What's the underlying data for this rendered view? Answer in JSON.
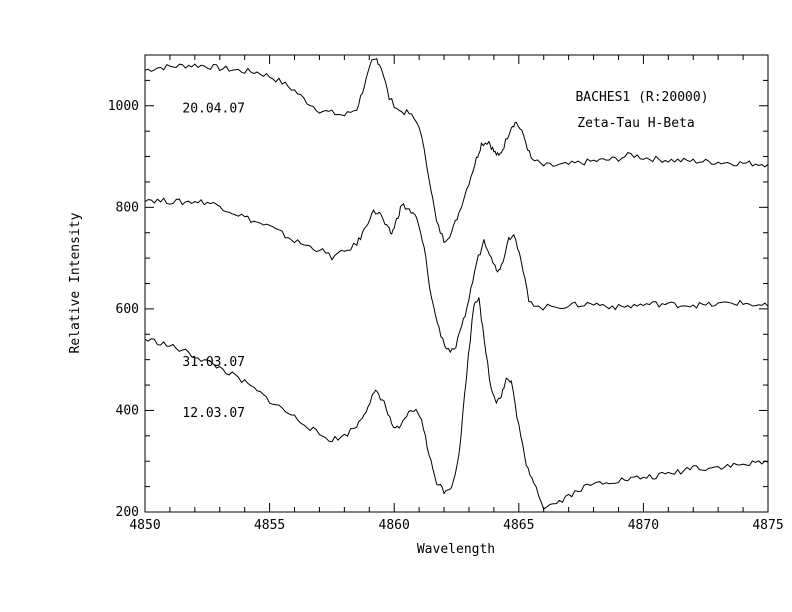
{
  "chart_data": {
    "type": "line",
    "title": "",
    "xlabel": "Wavelength",
    "ylabel": "Relative Intensity",
    "xlim": [
      4850,
      4875
    ],
    "ylim": [
      200,
      1100
    ],
    "xticks": [
      4850,
      4855,
      4860,
      4865,
      4870,
      4875
    ],
    "yticks": [
      200,
      400,
      600,
      800,
      1000
    ],
    "grid": false,
    "legend": "none",
    "annotations": [
      {
        "text": "BACHES1 (R:20000)",
        "x": 4866.9,
        "y": 1017
      },
      {
        "text": "Zeta-Tau H-Beta",
        "x": 4867.2,
        "y": 967
      }
    ],
    "series": [
      {
        "name": "20.04.07",
        "label_pos": [
          4851.5,
          997
        ],
        "points": [
          [
            4850,
            1070
          ],
          [
            4850.5,
            1075
          ],
          [
            4851,
            1077
          ],
          [
            4851.5,
            1079
          ],
          [
            4852,
            1080
          ],
          [
            4852.5,
            1078
          ],
          [
            4853,
            1074
          ],
          [
            4853.5,
            1071
          ],
          [
            4854,
            1068
          ],
          [
            4854.5,
            1066
          ],
          [
            4855,
            1058
          ],
          [
            4855.5,
            1046
          ],
          [
            4856,
            1030
          ],
          [
            4856.5,
            1008
          ],
          [
            4857,
            991
          ],
          [
            4857.5,
            986
          ],
          [
            4858,
            981
          ],
          [
            4858.5,
            994
          ],
          [
            4858.8,
            1040
          ],
          [
            4859.1,
            1085
          ],
          [
            4859.3,
            1092
          ],
          [
            4859.5,
            1074
          ],
          [
            4859.8,
            1015
          ],
          [
            4860.2,
            990
          ],
          [
            4860.6,
            985
          ],
          [
            4861,
            962
          ],
          [
            4861.4,
            860
          ],
          [
            4861.7,
            770
          ],
          [
            4862,
            735
          ],
          [
            4862.3,
            750
          ],
          [
            4862.6,
            790
          ],
          [
            4863,
            850
          ],
          [
            4863.3,
            895
          ],
          [
            4863.5,
            925
          ],
          [
            4863.8,
            930
          ],
          [
            4864,
            910
          ],
          [
            4864.2,
            900
          ],
          [
            4864.4,
            920
          ],
          [
            4864.7,
            960
          ],
          [
            4864.9,
            968
          ],
          [
            4865.2,
            940
          ],
          [
            4865.5,
            895
          ],
          [
            4866,
            882
          ],
          [
            4866.5,
            882
          ],
          [
            4867,
            884
          ],
          [
            4867.5,
            888
          ],
          [
            4868,
            891
          ],
          [
            4868.5,
            893
          ],
          [
            4869,
            896
          ],
          [
            4869.5,
            904
          ],
          [
            4870,
            898
          ],
          [
            4870.5,
            895
          ],
          [
            4871,
            893
          ],
          [
            4871.5,
            892
          ],
          [
            4872,
            891
          ],
          [
            4872.5,
            890
          ],
          [
            4873,
            889
          ],
          [
            4873.5,
            888
          ],
          [
            4874,
            887
          ],
          [
            4874.5,
            886
          ],
          [
            4875,
            885
          ]
        ]
      },
      {
        "name": "31.03.07",
        "label_pos": [
          4851.5,
          497
        ],
        "points": [
          [
            4850,
            817
          ],
          [
            4850.5,
            813
          ],
          [
            4851,
            812
          ],
          [
            4851.5,
            810
          ],
          [
            4852,
            812
          ],
          [
            4852.5,
            810
          ],
          [
            4853,
            803
          ],
          [
            4853.5,
            791
          ],
          [
            4854,
            781
          ],
          [
            4854.5,
            770
          ],
          [
            4855,
            762
          ],
          [
            4855.5,
            748
          ],
          [
            4856,
            734
          ],
          [
            4856.5,
            724
          ],
          [
            4857,
            717
          ],
          [
            4857.5,
            702
          ],
          [
            4858,
            712
          ],
          [
            4858.5,
            728
          ],
          [
            4858.8,
            755
          ],
          [
            4859.1,
            790
          ],
          [
            4859.4,
            790
          ],
          [
            4859.7,
            760
          ],
          [
            4859.9,
            748
          ],
          [
            4860.1,
            775
          ],
          [
            4860.3,
            805
          ],
          [
            4860.6,
            795
          ],
          [
            4860.9,
            778
          ],
          [
            4861.2,
            720
          ],
          [
            4861.5,
            620
          ],
          [
            4861.8,
            560
          ],
          [
            4862.1,
            522
          ],
          [
            4862.4,
            515
          ],
          [
            4862.7,
            560
          ],
          [
            4863,
            620
          ],
          [
            4863.3,
            690
          ],
          [
            4863.6,
            735
          ],
          [
            4863.9,
            705
          ],
          [
            4864.1,
            675
          ],
          [
            4864.3,
            685
          ],
          [
            4864.6,
            740
          ],
          [
            4864.8,
            750
          ],
          [
            4865.1,
            690
          ],
          [
            4865.4,
            620
          ],
          [
            4865.8,
            602
          ],
          [
            4866.5,
            605
          ],
          [
            4867,
            606
          ],
          [
            4867.5,
            609
          ],
          [
            4868,
            610
          ],
          [
            4868.5,
            607
          ],
          [
            4869,
            603
          ],
          [
            4869.5,
            606
          ],
          [
            4870,
            608
          ],
          [
            4870.5,
            610
          ],
          [
            4871,
            609
          ],
          [
            4871.5,
            608
          ],
          [
            4872,
            608
          ],
          [
            4872.5,
            607
          ],
          [
            4873,
            609
          ],
          [
            4873.5,
            612
          ],
          [
            4874,
            611
          ],
          [
            4874.5,
            608
          ],
          [
            4875,
            605
          ]
        ]
      },
      {
        "name": "12.03.07",
        "label_pos": [
          4851.5,
          397
        ],
        "points": [
          [
            4850,
            540
          ],
          [
            4850.5,
            535
          ],
          [
            4851,
            527
          ],
          [
            4851.5,
            518
          ],
          [
            4852,
            507
          ],
          [
            4852.5,
            496
          ],
          [
            4853,
            484
          ],
          [
            4853.5,
            470
          ],
          [
            4854,
            455
          ],
          [
            4854.5,
            438
          ],
          [
            4855,
            420
          ],
          [
            4855.5,
            403
          ],
          [
            4856,
            387
          ],
          [
            4856.5,
            371
          ],
          [
            4857,
            352
          ],
          [
            4857.5,
            342
          ],
          [
            4858,
            350
          ],
          [
            4858.5,
            370
          ],
          [
            4858.8,
            395
          ],
          [
            4859.1,
            425
          ],
          [
            4859.3,
            438
          ],
          [
            4859.6,
            415
          ],
          [
            4859.9,
            372
          ],
          [
            4860.2,
            360
          ],
          [
            4860.5,
            390
          ],
          [
            4860.8,
            402
          ],
          [
            4861.1,
            385
          ],
          [
            4861.4,
            310
          ],
          [
            4861.7,
            260
          ],
          [
            4862,
            242
          ],
          [
            4862.3,
            250
          ],
          [
            4862.6,
            310
          ],
          [
            4862.9,
            470
          ],
          [
            4863.2,
            610
          ],
          [
            4863.4,
            625
          ],
          [
            4863.6,
            540
          ],
          [
            4863.9,
            440
          ],
          [
            4864.1,
            420
          ],
          [
            4864.3,
            430
          ],
          [
            4864.5,
            462
          ],
          [
            4864.7,
            455
          ],
          [
            4865,
            370
          ],
          [
            4865.3,
            290
          ],
          [
            4865.6,
            262
          ],
          [
            4866,
            210
          ],
          [
            4866.5,
            218
          ],
          [
            4867,
            232
          ],
          [
            4867.5,
            246
          ],
          [
            4868,
            255
          ],
          [
            4868.5,
            260
          ],
          [
            4869,
            262
          ],
          [
            4869.5,
            265
          ],
          [
            4870,
            268
          ],
          [
            4870.5,
            270
          ],
          [
            4871,
            275
          ],
          [
            4871.5,
            280
          ],
          [
            4872,
            290
          ],
          [
            4872.5,
            286
          ],
          [
            4873,
            289
          ],
          [
            4873.5,
            291
          ],
          [
            4874,
            293
          ],
          [
            4874.5,
            296
          ],
          [
            4875,
            298
          ]
        ]
      }
    ]
  }
}
